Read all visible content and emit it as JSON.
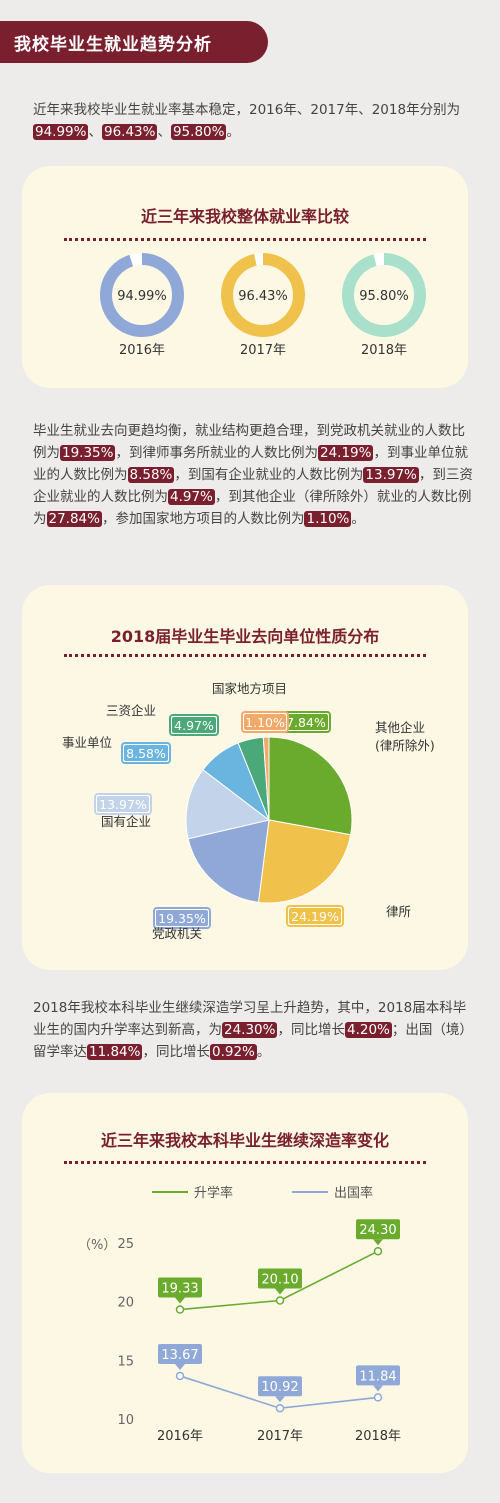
{
  "banner": {
    "title": "我校毕业生就业趋势分析"
  },
  "intro": {
    "text_a": "近年来我校毕业生就业率基本稳定，2016年、2017年、2018年分别为",
    "v1": "94.99%",
    "sep1": "、",
    "v2": "96.43%",
    "sep2": "、",
    "v3": "95.80%",
    "end": "。"
  },
  "card1": {
    "title": "近三年来我校整体就业率比较",
    "donuts": [
      {
        "label": "2016年",
        "value_text": "94.99%",
        "value": 94.99,
        "color": "#8fa8d8"
      },
      {
        "label": "2017年",
        "value_text": "96.43%",
        "value": 96.43,
        "color": "#f0c24b"
      },
      {
        "label": "2018年",
        "value_text": "95.80%",
        "value": 95.8,
        "color": "#a8e0cc"
      }
    ]
  },
  "para2": {
    "t1": "毕业生就业去向更趋均衡，就业结构更趋合理，到党政机关就业的人数比例为",
    "v1": "19.35%",
    "t2": "，到律师事务所就业的人数比例为",
    "v2": "24.19%",
    "t3": "，到事业单位就业的人数比例为",
    "v3": "8.58%",
    "t4": "，到国有企业就业的人数比例为",
    "v4": "13.97%",
    "t5": "，到三资企业就业的人数比例为",
    "v5": "4.97%",
    "t6": "，到其他企业（律所除外）就业的人数比例为",
    "v6": "27.84%",
    "t7": "，参加国家地方项目的人数比例为",
    "v7": "1.10%",
    "t8": "。"
  },
  "card2": {
    "title": "2018届毕业生毕业去向单位性质分布",
    "slices": [
      {
        "name": "其他企业\n(律所除外)",
        "value": 27.84,
        "label": "27.84%",
        "color": "#6aab2e",
        "labelbg": "#6aab2e"
      },
      {
        "name": "律所",
        "value": 24.19,
        "label": "24.19%",
        "color": "#f0c24b",
        "labelbg": "#f0c24b"
      },
      {
        "name": "党政机关",
        "value": 19.35,
        "label": "19.35%",
        "color": "#8fa8d8",
        "labelbg": "#8fa8d8"
      },
      {
        "name": "国有企业",
        "value": 13.97,
        "label": "13.97%",
        "color": "#c3d3ea",
        "labelbg": "#c3d3ea"
      },
      {
        "name": "事业单位",
        "value": 8.58,
        "label": "8.58%",
        "color": "#6ab4e0",
        "labelbg": "#6ab4e0"
      },
      {
        "name": "三资企业",
        "value": 4.97,
        "label": "4.97%",
        "color": "#4aa879",
        "labelbg": "#4aa879"
      },
      {
        "name": "国家地方项目",
        "value": 1.1,
        "label": "1.10%",
        "color": "#f2a96a",
        "labelbg": "#f2a96a"
      }
    ]
  },
  "para3": {
    "t1": "2018年我校本科毕业生继续深造学习呈上升趋势，其中，2018届本科毕业生的国内升学率达到新高，为",
    "v1": "24.30%",
    "t2": "，同比增长",
    "v2": "4.20%",
    "t3": "；出国（境）留学率达",
    "v3": "11.84%",
    "t4": "，同比增长",
    "v4": "0.92%",
    "t5": "。"
  },
  "card3": {
    "title": "近三年来我校本科毕业生继续深造率变化"
  },
  "chart_data": [
    {
      "type": "pie",
      "title": "近三年来我校整体就业率比较",
      "categories": [
        "2016年",
        "2017年",
        "2018年"
      ],
      "values": [
        94.99,
        96.43,
        95.8
      ]
    },
    {
      "type": "pie",
      "title": "2018届毕业生毕业去向单位性质分布",
      "categories": [
        "其他企业(律所除外)",
        "律所",
        "党政机关",
        "国有企业",
        "事业单位",
        "三资企业",
        "国家地方项目"
      ],
      "values": [
        27.84,
        24.19,
        19.35,
        13.97,
        8.58,
        4.97,
        1.1
      ]
    },
    {
      "type": "line",
      "title": "近三年来我校本科毕业生继续深造率变化",
      "categories": [
        "2016年",
        "2017年",
        "2018年"
      ],
      "series": [
        {
          "name": "升学率",
          "values": [
            19.33,
            20.1,
            24.3
          ],
          "color": "#6aab2e"
        },
        {
          "name": "出国率",
          "values": [
            13.67,
            10.92,
            11.84
          ],
          "color": "#8fa8d8"
        }
      ],
      "ylabel": "（%）",
      "ylim": [
        10,
        25
      ],
      "yticks": [
        "25",
        "20",
        "15",
        "10"
      ],
      "grid": false,
      "legend": "top"
    }
  ]
}
